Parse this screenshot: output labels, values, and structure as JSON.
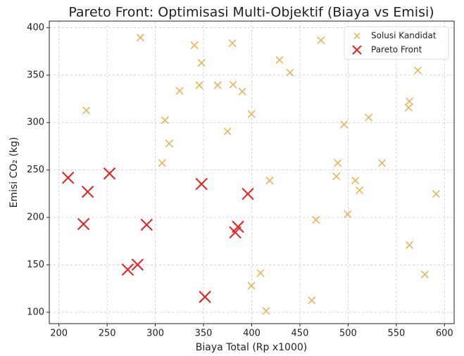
{
  "chart_data": {
    "type": "scatter",
    "title": "Pareto Front: Optimisasi Multi-Objektif (Biaya vs Emisi)",
    "x_label": "Biaya Total (Rp x1000)",
    "y_label": "Emisi CO₂ (kg)",
    "xlim": [
      190,
      610
    ],
    "ylim": [
      88,
      407
    ],
    "xticks": [
      200,
      250,
      300,
      350,
      400,
      450,
      500,
      550,
      600
    ],
    "yticks": [
      100,
      150,
      200,
      250,
      300,
      350,
      400
    ],
    "grid": true,
    "legend": "upper right",
    "series": [
      {
        "name": "Solusi Kandidat",
        "color": "#e8b55a",
        "marker_size": 5,
        "x": [
          284.5,
          340.6,
          380.0,
          471.8,
          428.8,
          347.9,
          439.7,
          572.3,
          228.4,
          325.3,
          345.7,
          364.7,
          380.7,
          390.2,
          399.7,
          563.6,
          562.8,
          521.3,
          495.8,
          310.0,
          314.4,
          374.9,
          307.1,
          489.3,
          535.2,
          487.8,
          418.6,
          507.5,
          511.8,
          591.3,
          466.7,
          499.5,
          563.6,
          579.6,
          409.1,
          399.6,
          415.0,
          462.3
        ],
        "values": [
          389.6,
          381.5,
          383.7,
          386.7,
          366.0,
          363.0,
          352.7,
          354.9,
          312.8,
          333.5,
          339.4,
          339.4,
          340.1,
          332.7,
          309.0,
          322.4,
          315.7,
          305.4,
          298.0,
          302.4,
          278.0,
          290.6,
          257.4,
          257.4,
          257.4,
          243.3,
          238.9,
          238.9,
          228.5,
          224.8,
          197.5,
          203.4,
          170.9,
          139.8,
          141.3,
          128.0,
          101.4,
          112.5
        ]
      },
      {
        "name": "Pareto Front",
        "color": "#ee1c1c",
        "marker_size": 8,
        "x": [
          209.5,
          229.9,
          252.5,
          225.5,
          291.0,
          347.9,
          396.0,
          385.8,
          382.9,
          271.4,
          281.6,
          351.5
        ],
        "values": [
          241.8,
          227.0,
          246.3,
          193.0,
          192.3,
          235.2,
          224.8,
          190.1,
          184.2,
          145.0,
          150.2,
          116.2
        ]
      }
    ]
  }
}
